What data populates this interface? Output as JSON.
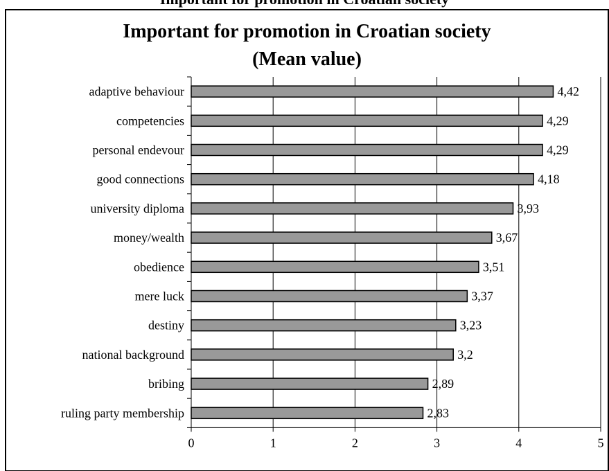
{
  "top_text": "Important for promotion in Croatian society",
  "chart_data": {
    "type": "bar",
    "orientation": "horizontal",
    "title": "Important for promotion in Croatian society\n(Mean value)",
    "categories": [
      "adaptive behaviour",
      "competencies",
      "personal endevour",
      "good connections",
      "university diploma",
      "money/wealth",
      "obedience",
      "mere luck",
      "destiny",
      "national background",
      "bribing",
      "ruling party membership"
    ],
    "values": [
      4.42,
      4.29,
      4.29,
      4.18,
      3.93,
      3.67,
      3.51,
      3.37,
      3.23,
      3.2,
      2.89,
      2.83
    ],
    "data_labels": [
      "4,42",
      "4,29",
      "4,29",
      "4,18",
      "3,93",
      "3,67",
      "3,51",
      "3,37",
      "3,23",
      "3,2",
      "2,89",
      "2,83"
    ],
    "xlim": [
      0,
      5
    ],
    "xticks": [
      "0",
      "1",
      "2",
      "3",
      "4",
      "5"
    ],
    "xlabel": "",
    "ylabel": "",
    "grid": "vertical",
    "legend": "none",
    "bar_color": "#999999",
    "bar_edge_color": "#000000"
  }
}
